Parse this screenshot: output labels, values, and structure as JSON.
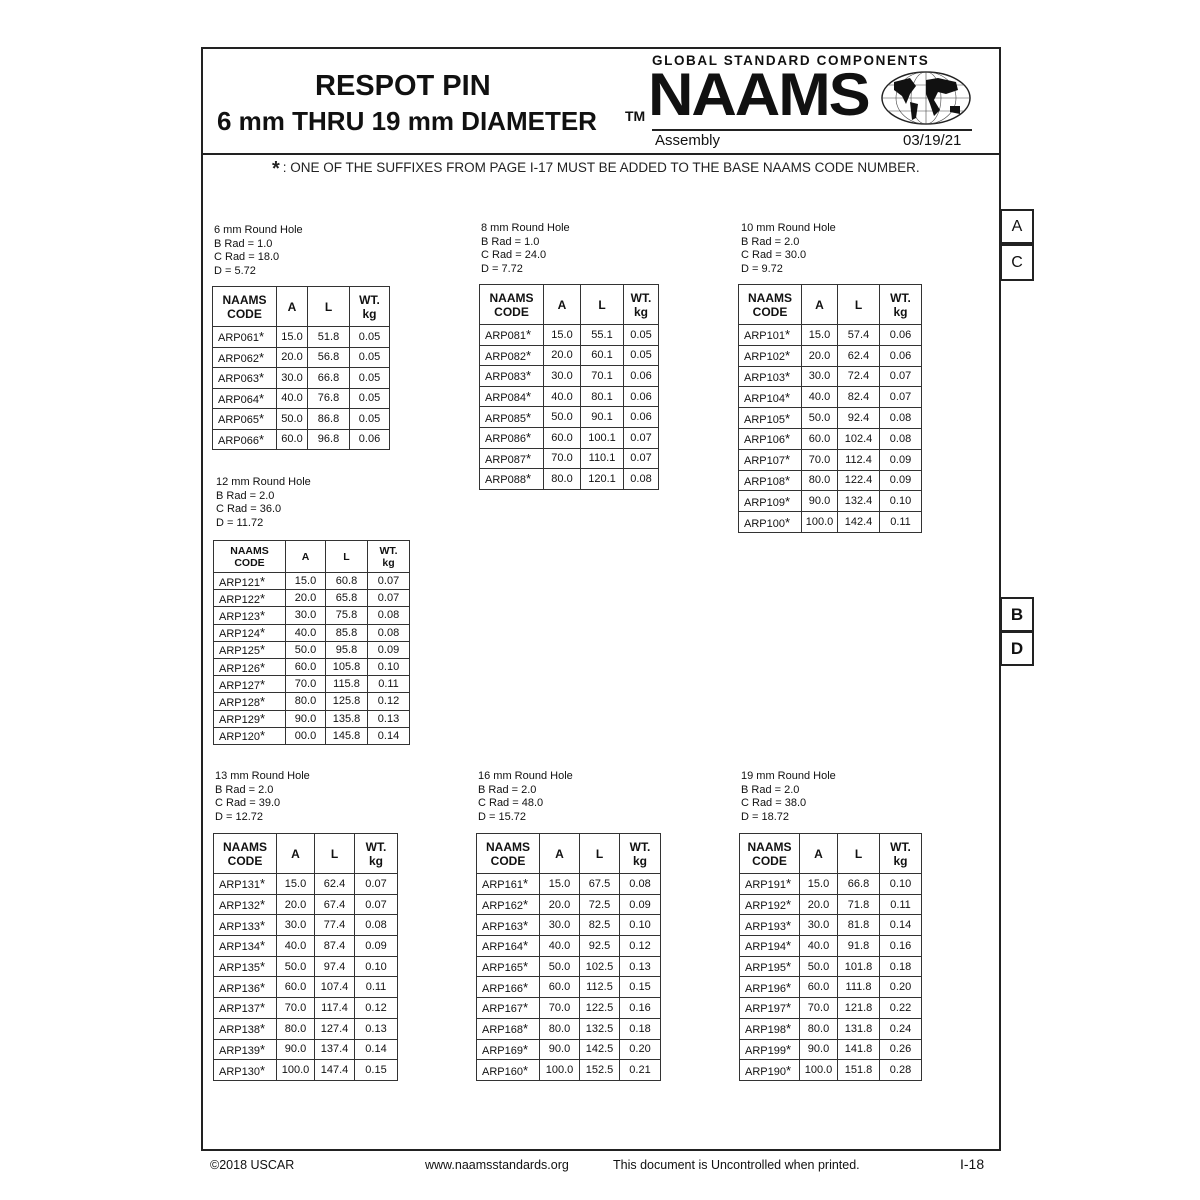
{
  "header": {
    "title": "RESPOT PIN",
    "subtitle": "6 mm THRU 19 mm DIAMETER",
    "tm": "TM",
    "tagline": "GLOBAL STANDARD COMPONENTS",
    "logo": "NAAMS",
    "section": "Assembly",
    "date": "03/19/21"
  },
  "note": {
    "symbol": "*",
    "text": ": ONE OF THE SUFFIXES FROM PAGE I-17 MUST BE ADDED TO THE BASE NAAMS CODE NUMBER."
  },
  "tabs": [
    "A",
    "C",
    "B",
    "D"
  ],
  "columns": [
    "NAAMS CODE",
    "A",
    "L",
    "WT. kg"
  ],
  "groups": [
    {
      "title": "6 mm Round Hole",
      "specs": [
        "B Rad = 1.0",
        "C Rad = 18.0",
        "D = 5.72"
      ],
      "rows": [
        [
          "ARP061",
          "15.0",
          "51.8",
          "0.05"
        ],
        [
          "ARP062",
          "20.0",
          "56.8",
          "0.05"
        ],
        [
          "ARP063",
          "30.0",
          "66.8",
          "0.05"
        ],
        [
          "ARP064",
          "40.0",
          "76.8",
          "0.05"
        ],
        [
          "ARP065",
          "50.0",
          "86.8",
          "0.05"
        ],
        [
          "ARP066",
          "60.0",
          "96.8",
          "0.06"
        ]
      ]
    },
    {
      "title": "8 mm Round Hole",
      "specs": [
        "B Rad = 1.0",
        "C Rad = 24.0",
        "D = 7.72"
      ],
      "rows": [
        [
          "ARP081",
          "15.0",
          "55.1",
          "0.05"
        ],
        [
          "ARP082",
          "20.0",
          "60.1",
          "0.05"
        ],
        [
          "ARP083",
          "30.0",
          "70.1",
          "0.06"
        ],
        [
          "ARP084",
          "40.0",
          "80.1",
          "0.06"
        ],
        [
          "ARP085",
          "50.0",
          "90.1",
          "0.06"
        ],
        [
          "ARP086",
          "60.0",
          "100.1",
          "0.07"
        ],
        [
          "ARP087",
          "70.0",
          "110.1",
          "0.07"
        ],
        [
          "ARP088",
          "80.0",
          "120.1",
          "0.08"
        ]
      ]
    },
    {
      "title": "10 mm Round Hole",
      "specs": [
        "B Rad = 2.0",
        "C Rad = 30.0",
        "D = 9.72"
      ],
      "rows": [
        [
          "ARP101",
          "15.0",
          "57.4",
          "0.06"
        ],
        [
          "ARP102",
          "20.0",
          "62.4",
          "0.06"
        ],
        [
          "ARP103",
          "30.0",
          "72.4",
          "0.07"
        ],
        [
          "ARP104",
          "40.0",
          "82.4",
          "0.07"
        ],
        [
          "ARP105",
          "50.0",
          "92.4",
          "0.08"
        ],
        [
          "ARP106",
          "60.0",
          "102.4",
          "0.08"
        ],
        [
          "ARP107",
          "70.0",
          "112.4",
          "0.09"
        ],
        [
          "ARP108",
          "80.0",
          "122.4",
          "0.09"
        ],
        [
          "ARP109",
          "90.0",
          "132.4",
          "0.10"
        ],
        [
          "ARP100",
          "100.0",
          "142.4",
          "0.11"
        ]
      ]
    },
    {
      "title": "12 mm Round Hole",
      "specs": [
        "B Rad = 2.0",
        "C Rad = 36.0",
        "D = 11.72"
      ],
      "rows": [
        [
          "ARP121",
          "15.0",
          "60.8",
          "0.07"
        ],
        [
          "ARP122",
          "20.0",
          "65.8",
          "0.07"
        ],
        [
          "ARP123",
          "30.0",
          "75.8",
          "0.08"
        ],
        [
          "ARP124",
          "40.0",
          "85.8",
          "0.08"
        ],
        [
          "ARP125",
          "50.0",
          "95.8",
          "0.09"
        ],
        [
          "ARP126",
          "60.0",
          "105.8",
          "0.10"
        ],
        [
          "ARP127",
          "70.0",
          "115.8",
          "0.11"
        ],
        [
          "ARP128",
          "80.0",
          "125.8",
          "0.12"
        ],
        [
          "ARP129",
          "90.0",
          "135.8",
          "0.13"
        ],
        [
          "ARP120",
          "00.0",
          "145.8",
          "0.14"
        ]
      ]
    },
    {
      "title": "13 mm Round Hole",
      "specs": [
        "B Rad = 2.0",
        "C Rad = 39.0",
        "D = 12.72"
      ],
      "rows": [
        [
          "ARP131",
          "15.0",
          "62.4",
          "0.07"
        ],
        [
          "ARP132",
          "20.0",
          "67.4",
          "0.07"
        ],
        [
          "ARP133",
          "30.0",
          "77.4",
          "0.08"
        ],
        [
          "ARP134",
          "40.0",
          "87.4",
          "0.09"
        ],
        [
          "ARP135",
          "50.0",
          "97.4",
          "0.10"
        ],
        [
          "ARP136",
          "60.0",
          "107.4",
          "0.11"
        ],
        [
          "ARP137",
          "70.0",
          "117.4",
          "0.12"
        ],
        [
          "ARP138",
          "80.0",
          "127.4",
          "0.13"
        ],
        [
          "ARP139",
          "90.0",
          "137.4",
          "0.14"
        ],
        [
          "ARP130",
          "100.0",
          "147.4",
          "0.15"
        ]
      ]
    },
    {
      "title": "16 mm Round Hole",
      "specs": [
        "B Rad = 2.0",
        "C Rad = 48.0",
        "D = 15.72"
      ],
      "rows": [
        [
          "ARP161",
          "15.0",
          "67.5",
          "0.08"
        ],
        [
          "ARP162",
          "20.0",
          "72.5",
          "0.09"
        ],
        [
          "ARP163",
          "30.0",
          "82.5",
          "0.10"
        ],
        [
          "ARP164",
          "40.0",
          "92.5",
          "0.12"
        ],
        [
          "ARP165",
          "50.0",
          "102.5",
          "0.13"
        ],
        [
          "ARP166",
          "60.0",
          "112.5",
          "0.15"
        ],
        [
          "ARP167",
          "70.0",
          "122.5",
          "0.16"
        ],
        [
          "ARP168",
          "80.0",
          "132.5",
          "0.18"
        ],
        [
          "ARP169",
          "90.0",
          "142.5",
          "0.20"
        ],
        [
          "ARP160",
          "100.0",
          "152.5",
          "0.21"
        ]
      ]
    },
    {
      "title": "19 mm Round Hole",
      "specs": [
        "B Rad = 2.0",
        "C Rad = 38.0",
        "D = 18.72"
      ],
      "rows": [
        [
          "ARP191",
          "15.0",
          "66.8",
          "0.10"
        ],
        [
          "ARP192",
          "20.0",
          "71.8",
          "0.11"
        ],
        [
          "ARP193",
          "30.0",
          "81.8",
          "0.14"
        ],
        [
          "ARP194",
          "40.0",
          "91.8",
          "0.16"
        ],
        [
          "ARP195",
          "50.0",
          "101.8",
          "0.18"
        ],
        [
          "ARP196",
          "60.0",
          "111.8",
          "0.20"
        ],
        [
          "ARP197",
          "70.0",
          "121.8",
          "0.22"
        ],
        [
          "ARP198",
          "80.0",
          "131.8",
          "0.24"
        ],
        [
          "ARP199",
          "90.0",
          "141.8",
          "0.26"
        ],
        [
          "ARP190",
          "100.0",
          "151.8",
          "0.28"
        ]
      ]
    }
  ],
  "footer": {
    "copyright": "©2018 USCAR",
    "url": "www.naamsstandards.org",
    "disclaimer": "This document is Uncontrolled when printed.",
    "page": "I-18"
  }
}
